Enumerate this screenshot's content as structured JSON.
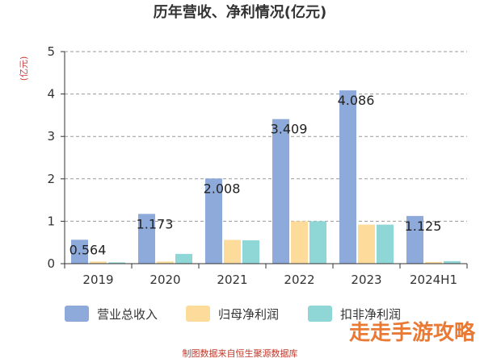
{
  "chart_data": {
    "type": "bar",
    "title": "历年营收、净利情况(亿元)",
    "ylabel": "(亿元)",
    "categories": [
      "2019",
      "2020",
      "2021",
      "2022",
      "2023",
      "2024H1"
    ],
    "ylim": [
      0,
      5
    ],
    "yticks": [
      0,
      1,
      2,
      3,
      4,
      5
    ],
    "grid": true,
    "legend_position": "bottom",
    "series": [
      {
        "name": "营业总收入",
        "color": "#8eaadb",
        "values": [
          0.564,
          1.173,
          2.008,
          3.409,
          4.086,
          1.125
        ]
      },
      {
        "name": "归母净利润",
        "color": "#fddb9a",
        "values": [
          0.05,
          0.05,
          0.56,
          1.0,
          0.92,
          0.04
        ]
      },
      {
        "name": "扣非净利润",
        "color": "#8fd6d6",
        "values": [
          0.03,
          0.23,
          0.55,
          1.0,
          0.92,
          0.06
        ]
      }
    ],
    "data_labels": [
      "0.564",
      "1.173",
      "2.008",
      "3.409",
      "4.086",
      "1.125"
    ]
  },
  "footer": "制图数据来自恒生聚源数据库",
  "watermark": "走走手游攻略"
}
